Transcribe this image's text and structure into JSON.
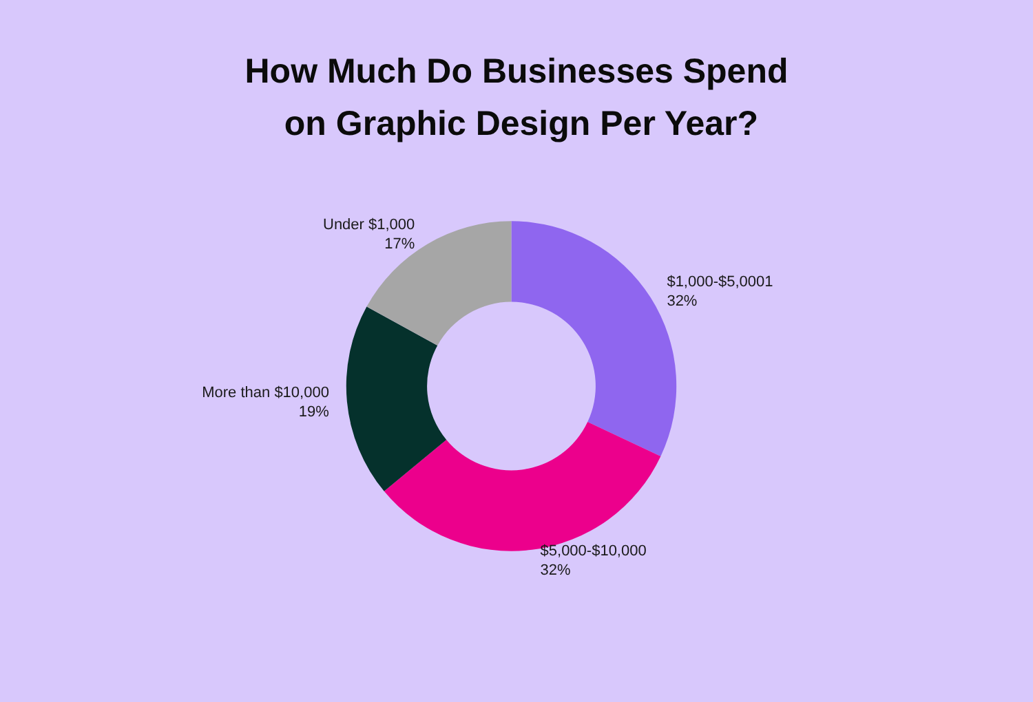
{
  "chart_data": {
    "type": "donut",
    "title": "How Much Do Businesses Spend on Graphic Design Per Year?",
    "categories": [
      "$1,000-$5,0001",
      "$5,000-$10,000",
      "More than $10,000",
      "Under $1,000"
    ],
    "values": [
      32,
      32,
      19,
      17
    ],
    "value_labels": [
      "32%",
      "32%",
      "19%",
      "17%"
    ],
    "colors": [
      "#8f66ef",
      "#ec008c",
      "#05312c",
      "#a6a6a6"
    ],
    "legend": false
  }
}
